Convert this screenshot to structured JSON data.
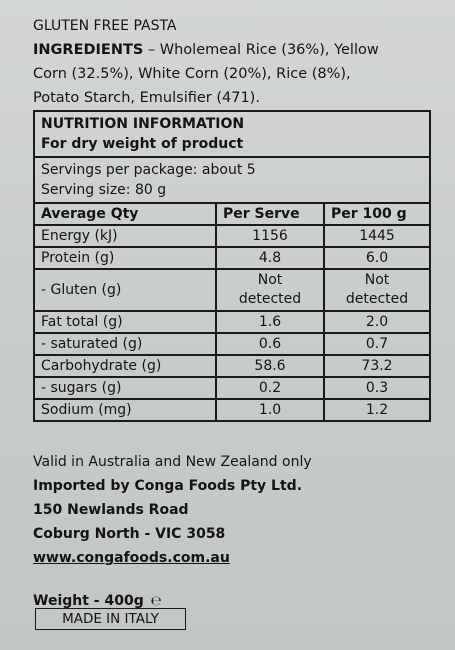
{
  "product": {
    "title": "GLUTEN FREE PASTA",
    "ingredients_label": "INGREDIENTS",
    "ingredients_line1": " – Wholemeal Rice (36%), Yellow",
    "ingredients_line2": "Corn (32.5%), White Corn (20%), Rice (8%),",
    "ingredients_line3": "Potato Starch, Emulsifier (471)."
  },
  "nutrition": {
    "heading": "NUTRITION INFORMATION",
    "subheading": "For dry weight of product",
    "servings_per_package": "Servings per package: about 5",
    "serving_size": "Serving size: 80 g",
    "columns": [
      "Average Qty",
      "Per Serve",
      "Per 100 g"
    ],
    "rows": [
      {
        "name": "Energy (kJ)",
        "per_serve": "1156",
        "per_100g": "1445"
      },
      {
        "name": "Protein (g)",
        "per_serve": "4.8",
        "per_100g": "6.0"
      },
      {
        "name": "- Gluten (g)",
        "per_serve": "Not detected",
        "per_100g": "Not detected"
      },
      {
        "name": "Fat total (g)",
        "per_serve": "1.6",
        "per_100g": "2.0"
      },
      {
        "name": "- saturated (g)",
        "per_serve": "0.6",
        "per_100g": "0.7"
      },
      {
        "name": "Carbohydrate (g)",
        "per_serve": "58.6",
        "per_100g": "73.2"
      },
      {
        "name": "- sugars (g)",
        "per_serve": "0.2",
        "per_100g": "0.3"
      },
      {
        "name": "Sodium (mg)",
        "per_serve": "1.0",
        "per_100g": "1.2"
      }
    ],
    "gluten_not": "Not",
    "gluten_detected": "detected"
  },
  "footer": {
    "valid": "Valid in Australia and New Zealand only",
    "importer": "Imported by Conga Foods Pty Ltd.",
    "address_line1": "150 Newlands Road",
    "address_line2": "Coburg North - VIC 3058",
    "website": "www.congafoods.com.au",
    "weight": "Weight - 400g",
    "estimated_mark": "℮",
    "made_in": "MADE IN ITALY"
  }
}
